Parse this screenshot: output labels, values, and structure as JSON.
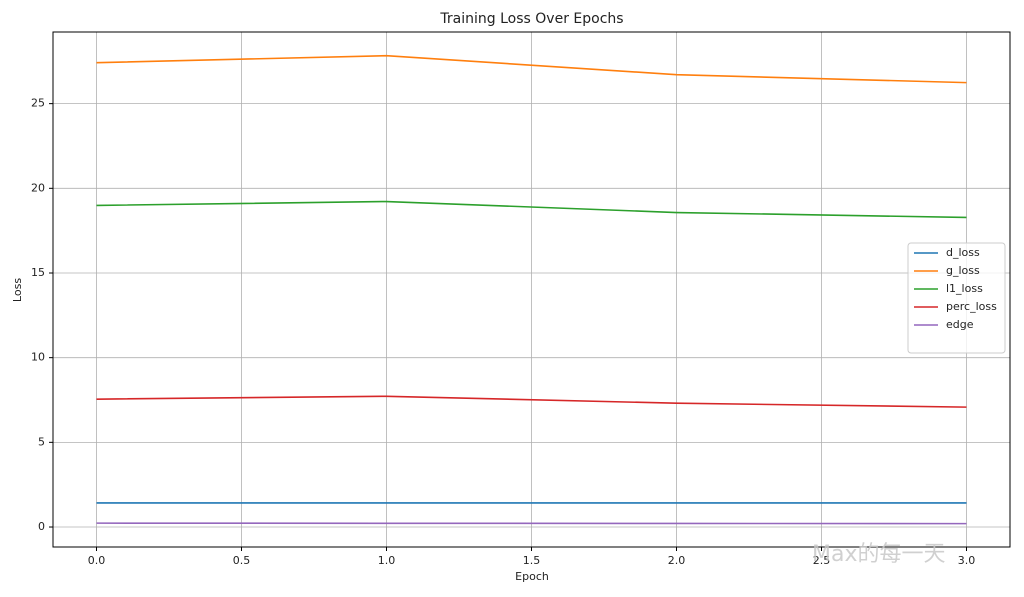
{
  "chart_data": {
    "type": "line",
    "title": "Training Loss Over Epochs",
    "x_label": "Epoch",
    "y_label": "Loss",
    "x": [
      0,
      1,
      2,
      3
    ],
    "series": [
      {
        "name": "d_loss",
        "color": "#1f77b4",
        "values": [
          1.42,
          1.42,
          1.42,
          1.42
        ]
      },
      {
        "name": "g_loss",
        "color": "#ff7f0e",
        "values": [
          27.42,
          27.83,
          26.71,
          26.24
        ]
      },
      {
        "name": "l1_loss",
        "color": "#2ca02c",
        "values": [
          18.99,
          19.22,
          18.57,
          18.28
        ]
      },
      {
        "name": "perc_loss",
        "color": "#d62728",
        "values": [
          7.55,
          7.72,
          7.31,
          7.08
        ]
      },
      {
        "name": "edge",
        "color": "#9467bd",
        "values": [
          0.23,
          0.22,
          0.21,
          0.2
        ]
      }
    ],
    "xlim": [
      -0.15,
      3.15
    ],
    "xticks": [
      {
        "value": 0,
        "label": "0.0"
      },
      {
        "value": 0.5,
        "label": "0.5"
      },
      {
        "value": 1,
        "label": "1.0"
      },
      {
        "value": 1.5,
        "label": "1.5"
      },
      {
        "value": 2,
        "label": "2.0"
      },
      {
        "value": 2.5,
        "label": "2.5"
      },
      {
        "value": 3,
        "label": "3.0"
      }
    ],
    "ylim": [
      -1.18,
      29.23
    ],
    "yticks": [
      0,
      5,
      10,
      15,
      20,
      25
    ],
    "grid": true,
    "legend": "right",
    "watermark": "Max的每一天"
  }
}
